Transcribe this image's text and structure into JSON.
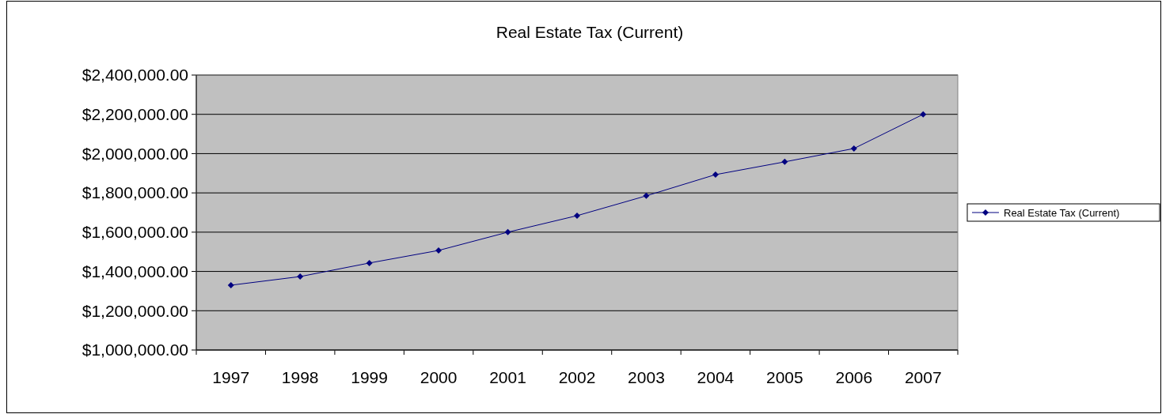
{
  "chart_data": {
    "type": "line",
    "title": "Real Estate Tax (Current)",
    "categories": [
      "1997",
      "1998",
      "1999",
      "2000",
      "2001",
      "2002",
      "2003",
      "2004",
      "2005",
      "2006",
      "2007"
    ],
    "series": [
      {
        "name": "Real Estate Tax (Current)",
        "color": "#000080",
        "values": [
          1330000,
          1374000,
          1443000,
          1507000,
          1600000,
          1684000,
          1785000,
          1893000,
          1958000,
          2026000,
          2200000
        ]
      }
    ],
    "ylim": [
      1000000,
      2400000
    ],
    "yticks": [
      {
        "value": 1000000,
        "label": "$1,000,000.00"
      },
      {
        "value": 1200000,
        "label": "$1,200,000.00"
      },
      {
        "value": 1400000,
        "label": "$1,400,000.00"
      },
      {
        "value": 1600000,
        "label": "$1,600,000.00"
      },
      {
        "value": 1800000,
        "label": "$1,800,000.00"
      },
      {
        "value": 2000000,
        "label": "$2,000,000.00"
      },
      {
        "value": 2200000,
        "label": "$2,200,000.00"
      },
      {
        "value": 2400000,
        "label": "$2,400,000.00"
      }
    ],
    "grid": "y",
    "legend": "right",
    "marker": "diamond",
    "line_style": "solid"
  }
}
